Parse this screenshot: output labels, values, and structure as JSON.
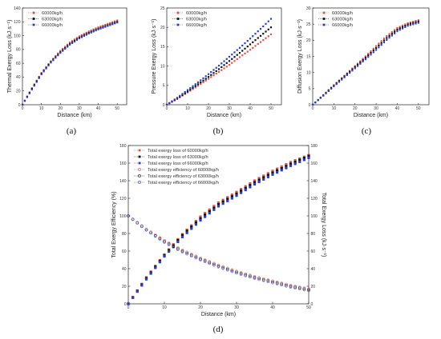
{
  "panels": [
    {
      "label": "(a)"
    },
    {
      "label": "(b)"
    },
    {
      "label": "(c)"
    },
    {
      "label": "(d)"
    }
  ],
  "chart_data": [
    {
      "id": "a",
      "type": "line",
      "xlabel": "Distance (km)",
      "ylabel": "Thermal Exergy Loss (kJ·s⁻¹)",
      "xlim": [
        0,
        55
      ],
      "ylim": [
        0,
        140
      ],
      "xticks": [
        "0",
        "10",
        "20",
        "30",
        "40",
        "50"
      ],
      "yticks": [
        "0",
        "20",
        "40",
        "60",
        "80",
        "100",
        "120",
        "140"
      ],
      "legend_position": "top-left",
      "series": [
        {
          "name": "60000kg/h",
          "color": "#d9534f",
          "x": [
            0,
            5,
            10,
            15,
            20,
            25,
            30,
            35,
            40,
            45,
            50
          ],
          "y": [
            0,
            24,
            46,
            63,
            78,
            90,
            99,
            106,
            112,
            117,
            122
          ]
        },
        {
          "name": "63000kg/h",
          "color": "#111111",
          "x": [
            0,
            5,
            10,
            15,
            20,
            25,
            30,
            35,
            40,
            45,
            50
          ],
          "y": [
            0,
            23,
            45,
            62,
            76,
            88,
            97,
            104,
            110,
            115,
            120
          ]
        },
        {
          "name": "66000kg/h",
          "color": "#2a3fbf",
          "x": [
            0,
            5,
            10,
            15,
            20,
            25,
            30,
            35,
            40,
            45,
            50
          ],
          "y": [
            0,
            22,
            44,
            61,
            75,
            87,
            96,
            103,
            109,
            114,
            119
          ]
        }
      ]
    },
    {
      "id": "b",
      "type": "line",
      "xlabel": "Distance (km)",
      "ylabel": "Pressure Exergy Loss (kJ·s⁻¹)",
      "xlim": [
        0,
        55
      ],
      "ylim": [
        0,
        25
      ],
      "xticks": [
        "0",
        "10",
        "20",
        "30",
        "40",
        "50"
      ],
      "yticks": [
        "0",
        "5",
        "10",
        "15",
        "20",
        "25"
      ],
      "legend_position": "top-left",
      "series": [
        {
          "name": "60000kg/h",
          "color": "#d9534f",
          "x": [
            0,
            5,
            10,
            15,
            20,
            25,
            30,
            35,
            40,
            45,
            50
          ],
          "y": [
            0,
            1.5,
            3.2,
            4.9,
            6.7,
            8.5,
            10.3,
            12.3,
            14.2,
            16.2,
            18.2
          ]
        },
        {
          "name": "63000kg/h",
          "color": "#111111",
          "x": [
            0,
            5,
            10,
            15,
            20,
            25,
            30,
            35,
            40,
            45,
            50
          ],
          "y": [
            0,
            1.6,
            3.4,
            5.3,
            7.2,
            9.2,
            11.3,
            13.4,
            15.6,
            17.8,
            20.0
          ]
        },
        {
          "name": "66000kg/h",
          "color": "#2a3fbf",
          "x": [
            0,
            5,
            10,
            15,
            20,
            25,
            30,
            35,
            40,
            45,
            50
          ],
          "y": [
            0,
            1.8,
            3.8,
            5.8,
            7.9,
            10.1,
            12.4,
            14.7,
            17.1,
            19.6,
            22.2
          ]
        }
      ]
    },
    {
      "id": "c",
      "type": "line",
      "xlabel": "Distance (km)",
      "ylabel": "Diffusion Exergy Loss (kJ·s⁻¹)",
      "xlim": [
        0,
        55
      ],
      "ylim": [
        0,
        30
      ],
      "xticks": [
        "0",
        "10",
        "20",
        "30",
        "40",
        "50"
      ],
      "yticks": [
        "0",
        "5",
        "10",
        "15",
        "20",
        "25",
        "30"
      ],
      "legend_position": "top-left",
      "series": [
        {
          "name": "60000kg/h",
          "color": "#d9534f",
          "x": [
            0,
            5,
            10,
            15,
            20,
            25,
            30,
            35,
            40,
            45,
            50
          ],
          "y": [
            0,
            3.0,
            6.1,
            9.0,
            12.0,
            15.0,
            18.2,
            21.3,
            23.8,
            25.3,
            26.2
          ]
        },
        {
          "name": "63000kg/h",
          "color": "#111111",
          "x": [
            0,
            5,
            10,
            15,
            20,
            25,
            30,
            35,
            40,
            45,
            50
          ],
          "y": [
            0,
            2.9,
            5.9,
            8.8,
            11.7,
            14.6,
            17.6,
            20.7,
            23.3,
            24.9,
            25.8
          ]
        },
        {
          "name": "66000kg/h",
          "color": "#2a3fbf",
          "x": [
            0,
            5,
            10,
            15,
            20,
            25,
            30,
            35,
            40,
            45,
            50
          ],
          "y": [
            0,
            2.8,
            5.7,
            8.5,
            11.3,
            14.1,
            17.0,
            20.1,
            22.8,
            24.5,
            25.4
          ]
        }
      ]
    },
    {
      "id": "d",
      "type": "line",
      "xlabel": "Distance (km)",
      "ylabel": "Total Exergy Efficiency (%)",
      "y2label": "Total Exergy Loss (kJ·s⁻¹)",
      "xlim": [
        0,
        50
      ],
      "ylim": [
        0,
        180
      ],
      "y2lim": [
        0,
        180
      ],
      "xticks": [
        "0",
        "10",
        "20",
        "30",
        "40",
        "50"
      ],
      "yticks": [
        "0",
        "20",
        "40",
        "60",
        "80",
        "100",
        "120",
        "140",
        "160",
        "180"
      ],
      "y2ticks": [
        "0",
        "20",
        "40",
        "60",
        "80",
        "100",
        "120",
        "140",
        "160",
        "180"
      ],
      "legend_position": "top-left",
      "series": [
        {
          "name": "Total exergy loss of 60000kg/h",
          "color": "#d9534f",
          "marker": "filled",
          "axis": "right",
          "x": [
            0,
            5,
            10,
            15,
            20,
            25,
            30,
            35,
            40,
            45,
            50
          ],
          "y": [
            0,
            30,
            56,
            79,
            99,
            115,
            127,
            140,
            151,
            161,
            169
          ]
        },
        {
          "name": "Total exergy loss of 63000kg/h",
          "color": "#111111",
          "marker": "filled",
          "axis": "right",
          "x": [
            0,
            5,
            10,
            15,
            20,
            25,
            30,
            35,
            40,
            45,
            50
          ],
          "y": [
            0,
            29,
            55,
            78,
            97,
            113,
            125,
            138,
            149,
            159,
            168
          ]
        },
        {
          "name": "Total exergy loss of 66000kg/h",
          "color": "#2a3fbf",
          "marker": "filled",
          "axis": "right",
          "x": [
            0,
            5,
            10,
            15,
            20,
            25,
            30,
            35,
            40,
            45,
            50
          ],
          "y": [
            0,
            28,
            54,
            76,
            95,
            111,
            123,
            136,
            147,
            157,
            166
          ]
        },
        {
          "name": "Total exergy efficiency of 60000kg/h",
          "color": "#d9534f",
          "marker": "open",
          "axis": "left",
          "x": [
            0,
            5,
            10,
            15,
            20,
            25,
            30,
            35,
            40,
            45,
            50
          ],
          "y": [
            100,
            85,
            72,
            61,
            52,
            44,
            37,
            31,
            26,
            21,
            17
          ]
        },
        {
          "name": "Total exergy efficiency of 63000kg/h",
          "color": "#111111",
          "marker": "open",
          "axis": "left",
          "x": [
            0,
            5,
            10,
            15,
            20,
            25,
            30,
            35,
            40,
            45,
            50
          ],
          "y": [
            100,
            84,
            71,
            60,
            51,
            43,
            36,
            30,
            25,
            20,
            16
          ]
        },
        {
          "name": "Total exergy efficiency of 66000kg/h",
          "color": "#2a3fbf",
          "marker": "open",
          "axis": "left",
          "x": [
            0,
            5,
            10,
            15,
            20,
            25,
            30,
            35,
            40,
            45,
            50
          ],
          "y": [
            100,
            84,
            70,
            59,
            50,
            42,
            35,
            29,
            24,
            19,
            15
          ]
        }
      ]
    }
  ]
}
